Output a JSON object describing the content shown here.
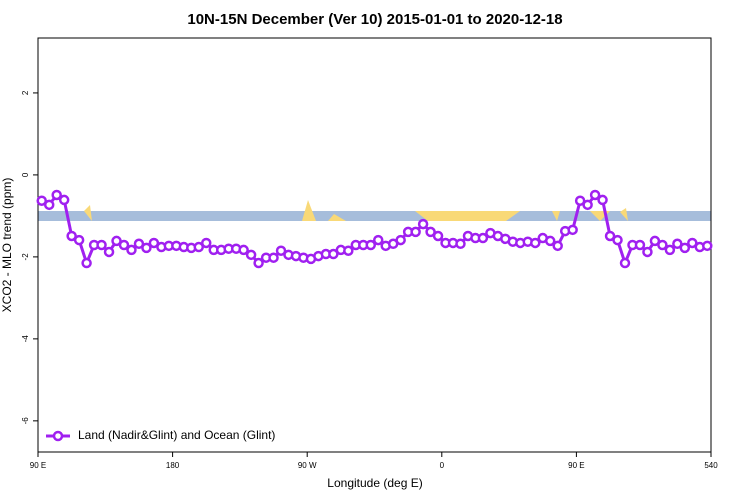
{
  "chart_data": {
    "type": "line",
    "title": "10N-15N December (Ver 10)   2015-01-01 to 2020-12-18",
    "x_label": "Longitude (deg E)",
    "y_label": "XCO2 - MLO trend (ppm)",
    "xlim": [
      90,
      540
    ],
    "ylim": [
      -6.76,
      3.34
    ],
    "xticks": [
      {
        "value": 90,
        "label": "90 E"
      },
      180,
      {
        "value": 270,
        "label": "90 W"
      },
      {
        "value": 360,
        "label": "0"
      },
      {
        "value": 450,
        "label": "90 E"
      },
      540
    ],
    "yticks": [
      2,
      0,
      -2,
      -4,
      -6
    ],
    "legend": "bottomleft",
    "x": [
      92.5,
      97.5,
      102.5,
      107.5,
      112.5,
      117.5,
      122.5,
      127.5,
      132.5,
      137.5,
      142.5,
      147.5,
      152.5,
      157.5,
      162.5,
      167.5,
      172.5,
      177.5,
      182.5,
      187.5,
      192.5,
      197.5,
      202.5,
      207.5,
      212.5,
      217.5,
      222.5,
      227.5,
      232.5,
      237.5,
      242.5,
      247.5,
      252.5,
      257.5,
      262.5,
      267.5,
      272.5,
      277.5,
      282.5,
      287.5,
      292.5,
      297.5,
      302.5,
      307.5,
      312.5,
      317.5,
      322.5,
      327.5,
      332.5,
      337.5,
      342.5,
      347.5,
      352.5,
      357.5,
      362.5,
      367.5,
      372.5,
      377.5,
      382.5,
      387.5,
      392.5,
      397.5,
      402.5,
      407.5,
      412.5,
      417.5,
      422.5,
      427.5,
      432.5,
      437.5,
      442.5,
      447.5,
      452.5,
      457.5,
      462.5,
      467.5,
      472.5,
      477.5,
      482.5,
      487.5,
      492.5,
      497.5,
      502.5,
      507.5,
      512.5,
      517.5,
      522.5,
      527.5,
      532.5,
      537.5
    ],
    "series": [
      {
        "name": "Land (Nadir&Glint) and Ocean (Glint)",
        "color": "#a020f0",
        "values": [
          -0.63,
          -0.73,
          -0.49,
          -0.61,
          -1.49,
          -1.59,
          -2.15,
          -1.71,
          -1.71,
          -1.88,
          -1.61,
          -1.71,
          -1.83,
          -1.68,
          -1.78,
          -1.66,
          -1.76,
          -1.73,
          -1.73,
          -1.76,
          -1.78,
          -1.76,
          -1.66,
          -1.83,
          -1.83,
          -1.8,
          -1.8,
          -1.83,
          -1.95,
          -2.15,
          -2.02,
          -2.02,
          -1.85,
          -1.95,
          -1.98,
          -2.02,
          -2.05,
          -1.98,
          -1.93,
          -1.93,
          -1.83,
          -1.85,
          -1.71,
          -1.71,
          -1.71,
          -1.59,
          -1.73,
          -1.68,
          -1.59,
          -1.39,
          -1.39,
          -1.2,
          -1.39,
          -1.49,
          -1.66,
          -1.66,
          -1.68,
          -1.49,
          -1.54,
          -1.54,
          -1.42,
          -1.49,
          -1.56,
          -1.63,
          -1.66,
          -1.63,
          -1.66,
          -1.54,
          -1.61,
          -1.73,
          -1.37,
          -1.34,
          -0.63,
          -0.73,
          -0.49,
          -0.61,
          -1.49,
          -1.59,
          -2.15,
          -1.71,
          -1.71,
          -1.88,
          -1.61,
          -1.71,
          -1.83,
          -1.68,
          -1.78,
          -1.66,
          -1.76,
          -1.73
        ]
      }
    ]
  }
}
